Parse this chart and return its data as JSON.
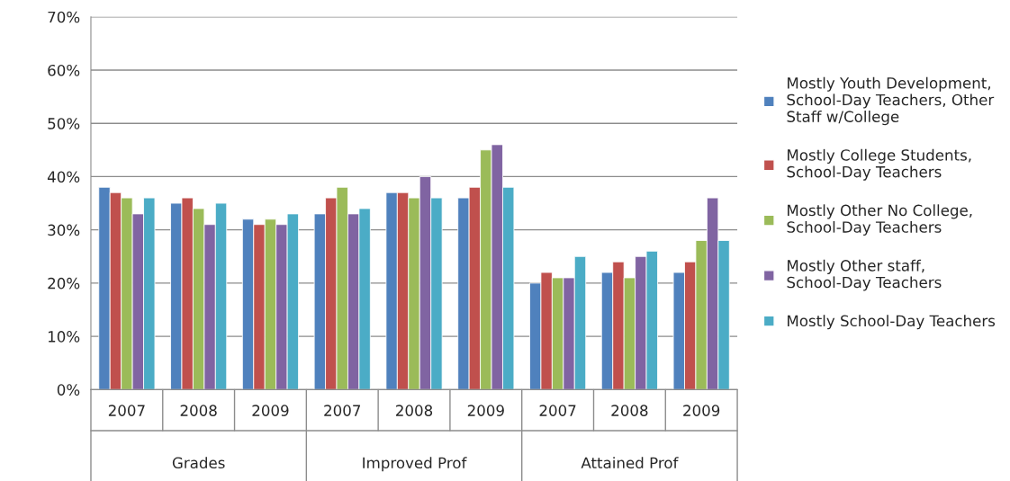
{
  "chart_data": {
    "type": "bar",
    "categories": [
      "2007",
      "2008",
      "2009",
      "2007",
      "2008",
      "2009",
      "2007",
      "2008",
      "2009"
    ],
    "annotations": [
      "Grades",
      "Improved Prof",
      "Attained Prof"
    ],
    "series": [
      {
        "name": "Mostly Youth Development, School-Day Teachers, Other Staff w/College",
        "color": "#4f81bd",
        "values": [
          38,
          35,
          32,
          33,
          37,
          36,
          20,
          22,
          22
        ]
      },
      {
        "name": "Mostly College Students, School-Day Teachers",
        "color": "#c0504d",
        "values": [
          37,
          36,
          31,
          36,
          37,
          38,
          22,
          24,
          24
        ]
      },
      {
        "name": "Mostly Other No College, School-Day Teachers",
        "color": "#9bbb59",
        "values": [
          36,
          34,
          32,
          38,
          36,
          45,
          21,
          21,
          28
        ]
      },
      {
        "name": "Mostly Other staff, School-Day Teachers",
        "color": "#8064a2",
        "values": [
          33,
          31,
          31,
          33,
          40,
          46,
          21,
          25,
          36
        ]
      },
      {
        "name": "Mostly School-Day Teachers",
        "color": "#4bacc6",
        "values": [
          36,
          35,
          33,
          34,
          36,
          38,
          25,
          26,
          28
        ]
      }
    ],
    "ylim": [
      0,
      70
    ],
    "yticks": [
      {
        "value": 0,
        "label": "0%"
      },
      {
        "value": 10,
        "label": "10%"
      },
      {
        "value": 20,
        "label": "20%"
      },
      {
        "value": 30,
        "label": "30%"
      },
      {
        "value": 40,
        "label": "40%"
      },
      {
        "value": 50,
        "label": "50%"
      },
      {
        "value": 60,
        "label": "60%"
      },
      {
        "value": 70,
        "label": "70%"
      }
    ],
    "grid": "y",
    "legend": "right"
  }
}
